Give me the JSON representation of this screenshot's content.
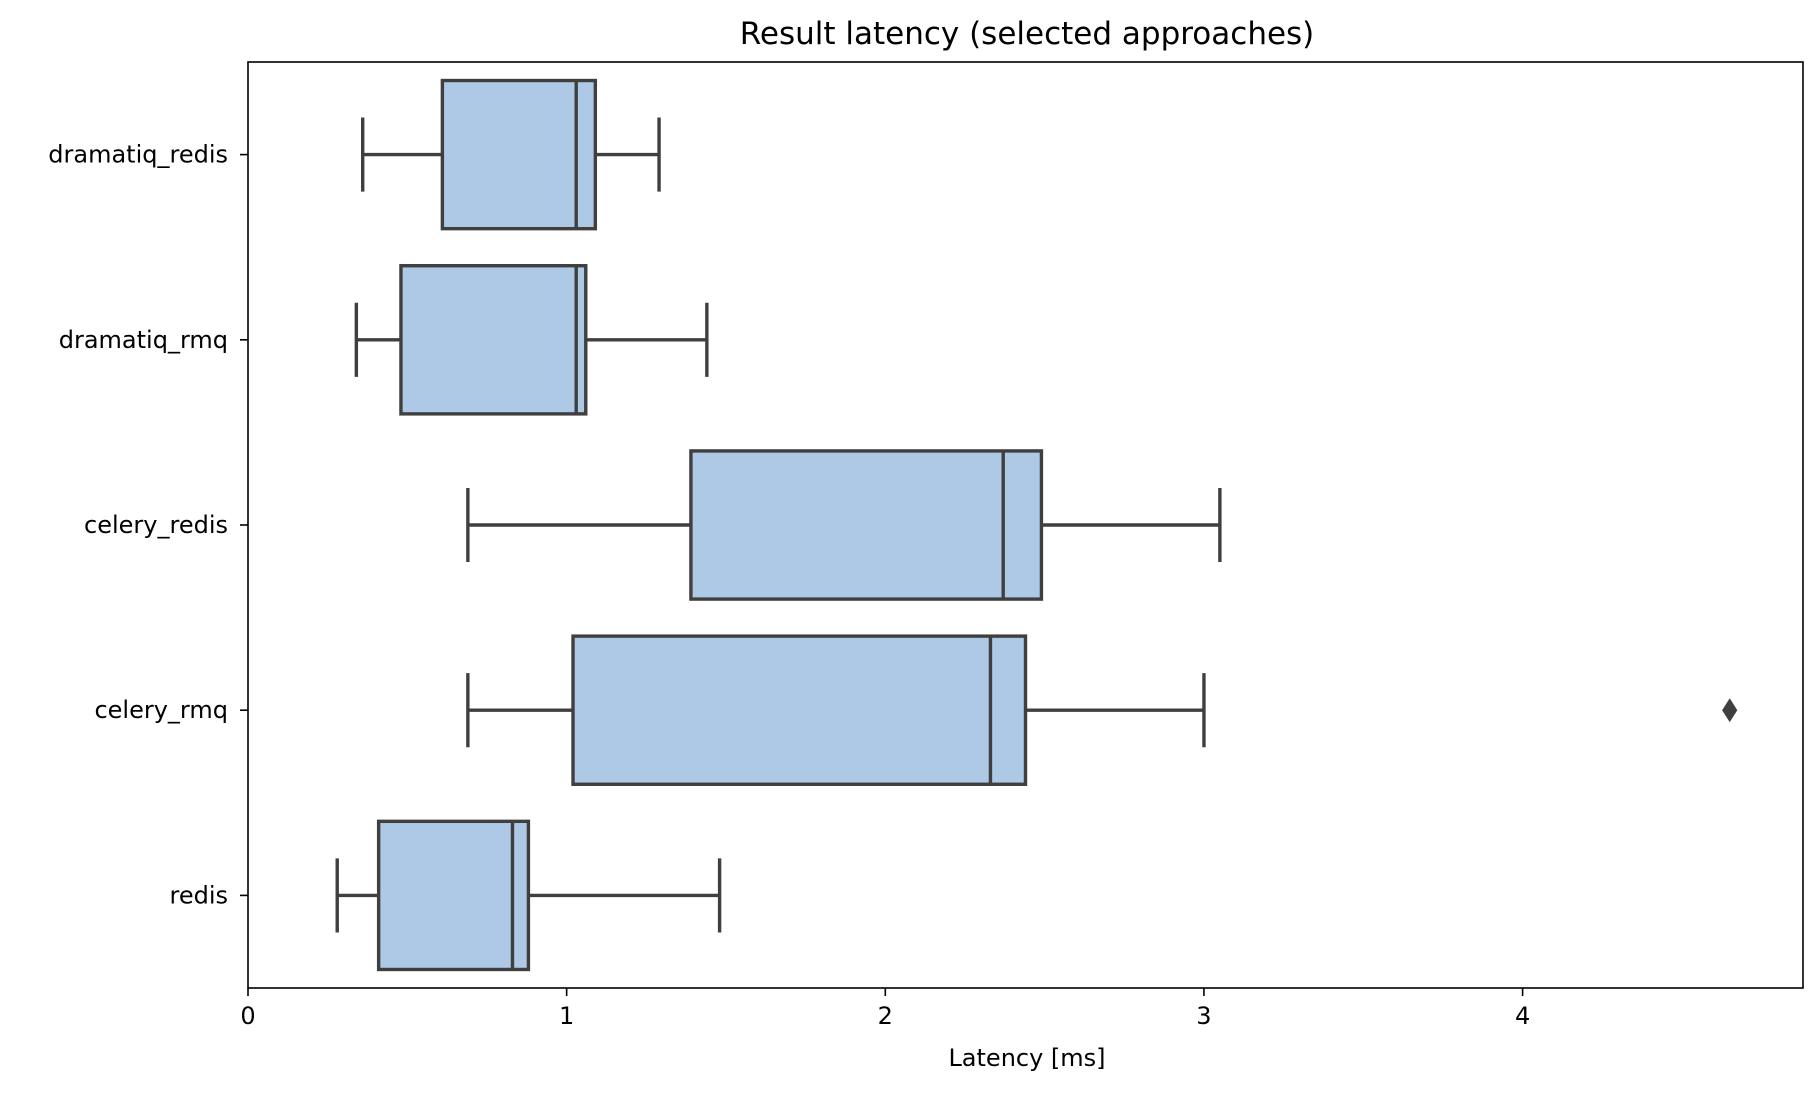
{
  "chart_data": {
    "type": "box",
    "orientation": "horizontal",
    "title": "Result latency (selected approaches)",
    "xlabel": "Latency [ms]",
    "ylabel": "",
    "xlim": [
      0,
      4.88
    ],
    "xticks": [
      0,
      1,
      2,
      3,
      4
    ],
    "grid": false,
    "colors": {
      "box_fill": "#aec9e6",
      "line": "#3f3f3f",
      "spine": "#000000"
    },
    "categories": [
      "dramatiq_redis",
      "dramatiq_rmq",
      "celery_redis",
      "celery_rmq",
      "redis"
    ],
    "boxes": [
      {
        "label": "dramatiq_redis",
        "whisker_low": 0.36,
        "q1": 0.61,
        "median": 1.03,
        "q3": 1.09,
        "whisker_high": 1.29,
        "outliers": []
      },
      {
        "label": "dramatiq_rmq",
        "whisker_low": 0.34,
        "q1": 0.48,
        "median": 1.03,
        "q3": 1.06,
        "whisker_high": 1.44,
        "outliers": []
      },
      {
        "label": "celery_redis",
        "whisker_low": 0.69,
        "q1": 1.39,
        "median": 2.37,
        "q3": 2.49,
        "whisker_high": 3.05,
        "outliers": []
      },
      {
        "label": "celery_rmq",
        "whisker_low": 0.69,
        "q1": 1.02,
        "median": 2.33,
        "q3": 2.44,
        "whisker_high": 3.0,
        "outliers": [
          4.65
        ]
      },
      {
        "label": "redis",
        "whisker_low": 0.28,
        "q1": 0.41,
        "median": 0.83,
        "q3": 0.88,
        "whisker_high": 1.48,
        "outliers": []
      }
    ]
  }
}
